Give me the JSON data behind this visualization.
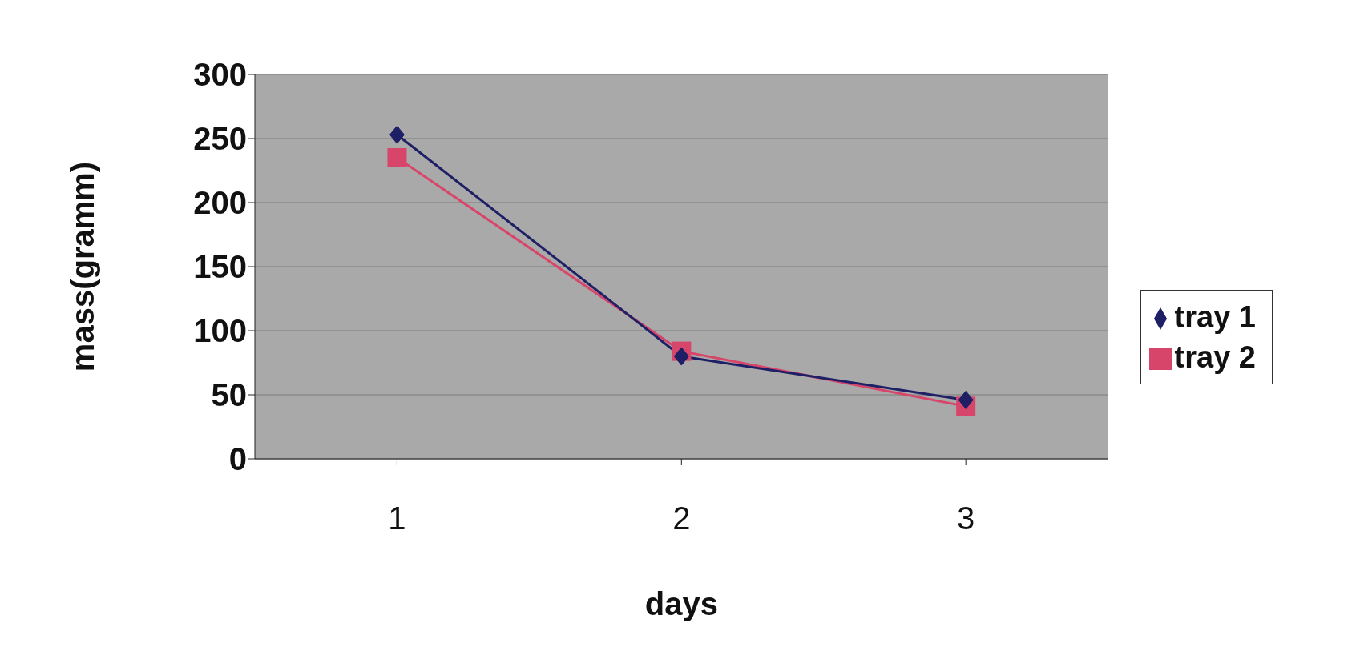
{
  "chart_data": {
    "type": "line",
    "xlabel": "days",
    "ylabel": "mass(gramm)",
    "categories": [
      "1",
      "2",
      "3"
    ],
    "series": [
      {
        "name": "tray 1",
        "color": "#1f1f66",
        "values": [
          253,
          80,
          46
        ],
        "marker": "diamond"
      },
      {
        "name": "tray 2",
        "color": "#d8456a",
        "values": [
          235,
          84,
          41
        ],
        "marker": "square"
      }
    ],
    "ylim": [
      0,
      300
    ],
    "yticks": [
      0,
      50,
      100,
      150,
      200,
      250,
      300
    ],
    "grid": "y",
    "legend": "right"
  }
}
